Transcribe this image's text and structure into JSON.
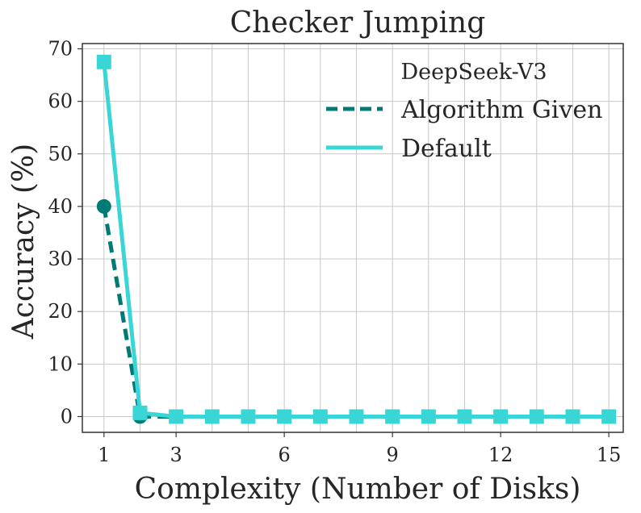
{
  "chart_data": {
    "type": "line",
    "title": "Checker Jumping",
    "xlabel": "Complexity (Number of Disks)",
    "ylabel": "Accuracy (%)",
    "xlim": [
      0.4,
      15.4
    ],
    "ylim": [
      -3,
      71
    ],
    "xticks": [
      1,
      3,
      6,
      9,
      12,
      15
    ],
    "yticks": [
      0,
      10,
      20,
      30,
      40,
      50,
      60,
      70
    ],
    "grid": true,
    "legend": {
      "title": "DeepSeek-V3",
      "position": "top-right"
    },
    "series": [
      {
        "name": "Algorithm Given",
        "color": "#007a74",
        "line_style": "dashed",
        "marker": "circle",
        "x": [
          1,
          2,
          3,
          4,
          5,
          6,
          7,
          8,
          9,
          10,
          11,
          12,
          13,
          14,
          15
        ],
        "y": [
          40,
          0,
          0,
          0,
          0,
          0,
          0,
          0,
          0,
          0,
          0,
          0,
          0,
          0,
          0
        ]
      },
      {
        "name": "Default",
        "color": "#3ad6d6",
        "line_style": "solid",
        "marker": "square",
        "x": [
          1,
          2,
          3,
          4,
          5,
          6,
          7,
          8,
          9,
          10,
          11,
          12,
          13,
          14,
          15
        ],
        "y": [
          67.5,
          0.7,
          0,
          0,
          0,
          0,
          0,
          0,
          0,
          0,
          0,
          0,
          0,
          0,
          0
        ]
      }
    ]
  }
}
